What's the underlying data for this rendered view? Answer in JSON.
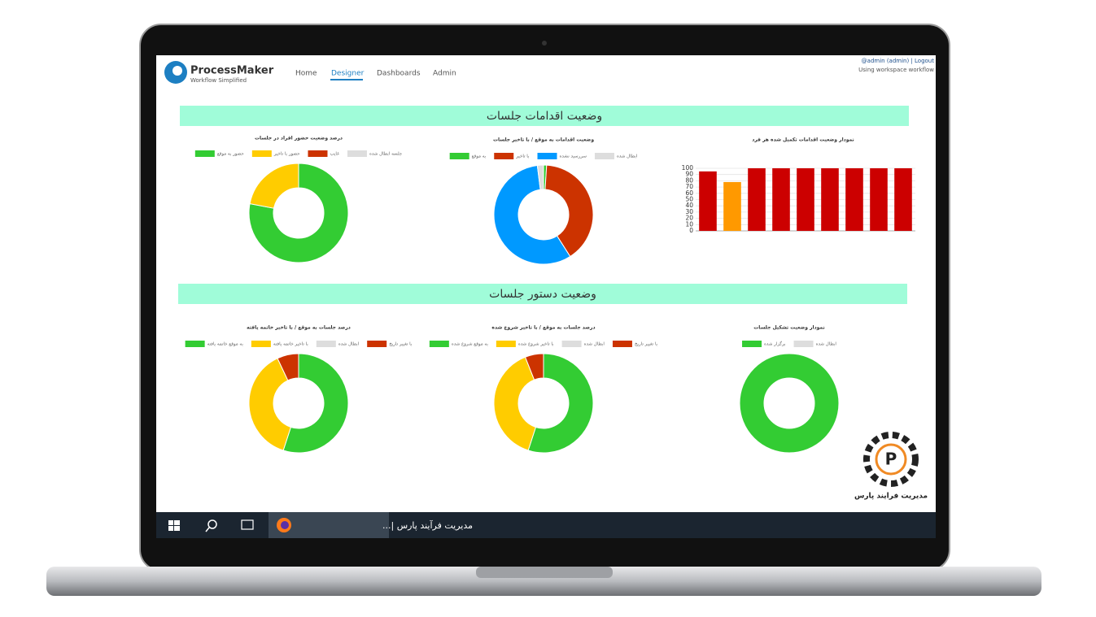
{
  "header": {
    "brand": "ProcessMaker",
    "tagline": "Workflow Simplified",
    "nav": [
      "Home",
      "Designer",
      "Dashboards",
      "Admin"
    ],
    "user": "@admin (admin) | Logout",
    "workspace": "Using workspace workflow"
  },
  "sections": [
    "وضعیت اقدامات جلسات",
    "وضعیت دستور جلسات"
  ],
  "chart_data": [
    {
      "type": "pie",
      "title": "درصد وضعیت حضور افراد در جلسات",
      "categories": [
        "حضور به موقع",
        "حضور با تاخیر",
        "غایب",
        "جلسه ابطال شده"
      ],
      "values": [
        78,
        22,
        0,
        0
      ],
      "colors": [
        "#33cc33",
        "#ffcc00",
        "#cc3300",
        "#dddddd"
      ]
    },
    {
      "type": "pie",
      "title": "وضعیت اقدامات به موقع / با تاخیر جلسات",
      "categories": [
        "به موقع",
        "با تاخیر",
        "سررسید نشده",
        "ابطال شده"
      ],
      "values": [
        1,
        40,
        57,
        2
      ],
      "colors": [
        "#33cc33",
        "#cc3300",
        "#0099ff",
        "#dddddd"
      ]
    },
    {
      "type": "bar",
      "title": "نمودار وضعیت اقدامات تکمیل شده هر فرد",
      "categories": [
        null,
        null,
        null,
        null,
        null,
        null,
        null,
        null,
        null
      ],
      "values": [
        95,
        78,
        100,
        100,
        100,
        100,
        100,
        100,
        100
      ],
      "colors": [
        "#cc0000",
        "#ff9900",
        "#cc0000",
        "#cc0000",
        "#cc0000",
        "#cc0000",
        "#cc0000",
        "#cc0000",
        "#cc0000"
      ],
      "ylim": [
        0,
        100
      ],
      "yticks": [
        0,
        10,
        20,
        30,
        40,
        50,
        60,
        70,
        80,
        90,
        100
      ],
      "grid": true
    },
    {
      "type": "pie",
      "title": "درصد جلسات به موقع / با تاخیر خاتمه یافته",
      "categories": [
        "به موقع خاتمه یافته",
        "با تاخیر خاتمه یافته",
        "ابطال شده",
        "با تغییر تاریخ"
      ],
      "values": [
        55,
        38,
        0,
        7
      ],
      "colors": [
        "#33cc33",
        "#ffcc00",
        "#dddddd",
        "#cc3300"
      ]
    },
    {
      "type": "pie",
      "title": "درصد جلسات به موقع / با تاخیر شروع شده",
      "categories": [
        "به موقع شروع شده",
        "با تاخیر شروع شده",
        "ابطال شده",
        "با تغییر تاریخ"
      ],
      "values": [
        55,
        39,
        0,
        6
      ],
      "colors": [
        "#33cc33",
        "#ffcc00",
        "#dddddd",
        "#cc3300"
      ]
    },
    {
      "type": "pie",
      "title": "نمودار وضعیت تشکیل جلسات",
      "categories": [
        "برگزار شده",
        "ابطال شده"
      ],
      "values": [
        100,
        0
      ],
      "colors": [
        "#33cc33",
        "#dddddd"
      ]
    }
  ],
  "taskbar": {
    "window": "مدیریت فرآیند پارس |..."
  },
  "logo": {
    "text": "مدیریت فرایند پارس"
  }
}
